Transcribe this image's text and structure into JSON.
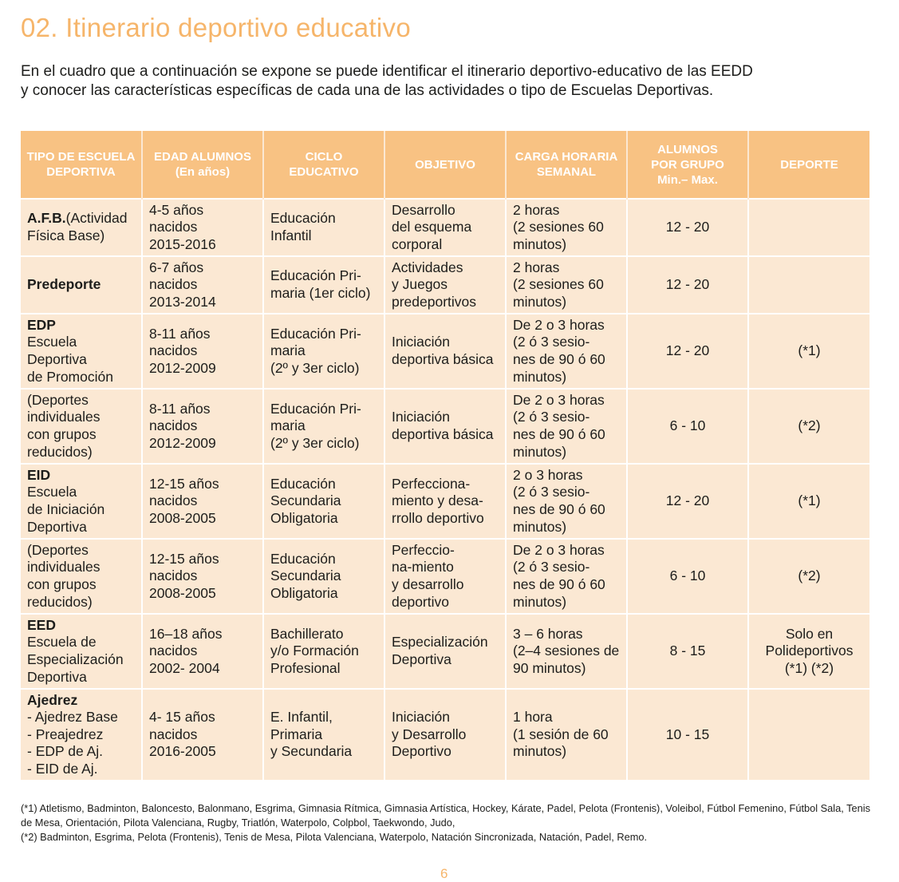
{
  "page": {
    "title": "02. Itinerario deportivo educativo",
    "intro_line1": "En el cuadro que a continuación se expone se puede identificar el itinerario deportivo-educativo de las EEDD",
    "intro_line2": "y conocer las características específicas de cada una de las actividades o tipo de Escuelas Deportivas.",
    "page_number": "6"
  },
  "table": {
    "headers": [
      "TIPO DE ESCUELA\nDEPORTIVA",
      "EDAD ALUMNOS\n(En años)",
      "CICLO\nEDUCATIVO",
      "OBJETIVO",
      "CARGA HORARIA\nSEMANAL",
      "ALUMNOS\nPOR GRUPO\nMin.– Max.",
      "DEPORTE"
    ],
    "rows": [
      {
        "type_bold": "A.F.B.",
        "type_rest": "(Actividad\nFísica Base)",
        "age": "4-5  años\nnacidos\n2015-2016",
        "cycle": "Educación\nInfantil",
        "objective": "Desarrollo\ndel esquema\ncorporal",
        "hours": "2 horas\n(2 sesiones 60\nminutos)",
        "group": "12   -   20",
        "sport": ""
      },
      {
        "type_bold": "Predeporte",
        "type_rest": "",
        "age": "6-7  años\nnacidos\n2013-2014",
        "cycle": "Educación Pri-\nmaria (1er ciclo)",
        "objective": "Actividades\ny Juegos\npredeportivos",
        "hours": "2 horas\n(2 sesiones 60\nminutos)",
        "group": "12   -   20",
        "sport": ""
      },
      {
        "type_bold": "EDP",
        "type_rest": "\nEscuela\nDeportiva\nde Promoción",
        "age": "8-11  años\nnacidos\n2012-2009",
        "cycle": "Educación Pri-\nmaria\n(2º y 3er ciclo)",
        "objective": "Iniciación\ndeportiva básica",
        "hours": "De 2 o 3 horas\n(2 ó 3 sesio-\nnes de 90 ó 60\nminutos)",
        "group": "12   -   20",
        "sport": "(*1)"
      },
      {
        "type_bold": "",
        "type_rest": "(Deportes\nindividuales\ncon grupos\nreducidos)",
        "age": "8-11  años\nnacidos\n2012-2009",
        "cycle": "Educación Pri-\nmaria\n(2º y 3er ciclo)",
        "objective": "Iniciación\ndeportiva básica",
        "hours": "De 2 o 3 horas\n(2 ó 3 sesio-\nnes de 90 ó 60\nminutos)",
        "group": "6 - 10",
        "sport": "(*2)"
      },
      {
        "type_bold": "EID",
        "type_rest": "\nEscuela\nde Iniciación\nDeportiva",
        "age": "12-15 años\nnacidos\n2008-2005",
        "cycle": "Educación\nSecundaria\nObligatoria",
        "objective": "Perfecciona-\nmiento y desa-\nrrollo deportivo",
        "hours": "2 o 3 horas\n(2 ó 3 sesio-\nnes de 90 ó 60\nminutos)",
        "group": "12   -   20",
        "sport": "(*1)"
      },
      {
        "type_bold": "",
        "type_rest": "(Deportes\nindividuales\ncon grupos\nreducidos)",
        "age": "12-15 años\nnacidos\n2008-2005",
        "cycle": "Educación\nSecundaria\nObligatoria",
        "objective": "Perfeccio-\nna-miento\ny desarrollo\ndeportivo",
        "hours": "De 2 o 3 horas\n(2 ó 3 sesio-\nnes de 90 ó 60\nminutos)",
        "group": "6 - 10",
        "sport": "(*2)"
      },
      {
        "type_bold": "EED",
        "type_rest": "\nEscuela de\nEspecialización\nDeportiva",
        "age": "16–18 años\nnacidos\n2002- 2004",
        "cycle": "Bachillerato\ny/o Formación\nProfesional",
        "objective": "Especialización\nDeportiva",
        "hours": "3 – 6 horas\n(2–4 sesiones de\n90 minutos)",
        "group": "8   -   15",
        "sport": "Solo en\nPolideportivos\n(*1) (*2)"
      },
      {
        "type_bold": "Ajedrez",
        "type_rest": "\n- Ajedrez Base\n- Preajedrez\n- EDP de Aj.\n- EID de Aj.",
        "age": "4- 15 años\nnacidos\n2016-2005",
        "cycle": "E. Infantil,\nPrimaria\ny Secundaria",
        "objective": "Iniciación\ny Desarrollo\nDeportivo",
        "hours": "1 hora\n(1 sesión de 60\nminutos)",
        "group": "10   -   15",
        "sport": ""
      }
    ]
  },
  "footnotes": {
    "note1": "(*1) Atletismo, Badminton, Baloncesto, Balonmano, Esgrima, Gimnasia Rítmica, Gimnasia Artística, Hockey, Kárate, Padel, Pelota (Frontenis), Voleibol, Fútbol Femenino, Fútbol Sala, Tenis de Mesa, Orientación, Pilota Valenciana, Rugby, Triatlón, Waterpolo, Colpbol, Taekwondo, Judo,",
    "note2": "(*2) Badminton, Esgrima, Pelota (Frontenis), Tenis de Mesa, Pilota Valenciana, Waterpolo, Natación Sincronizada, Natación, Padel, Remo."
  },
  "colors": {
    "title": "#f6b56a",
    "header_bg": "#f8c283",
    "cell_bg": "#fbe8d3"
  }
}
